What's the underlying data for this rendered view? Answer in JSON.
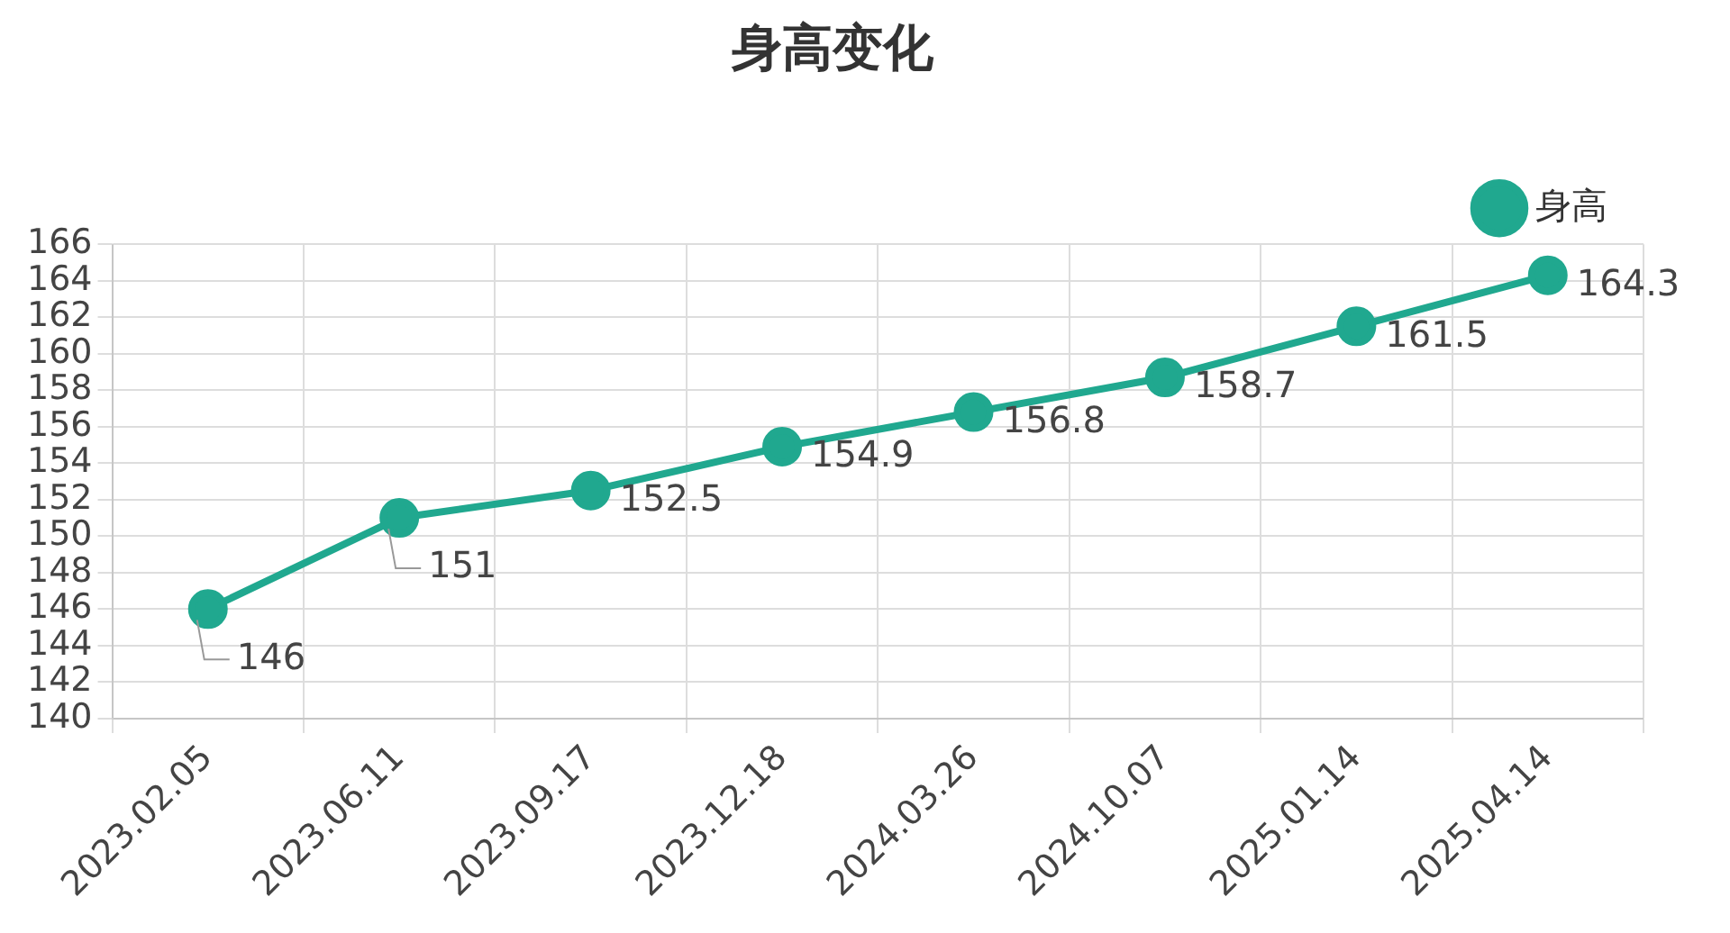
{
  "chart_data": {
    "type": "line",
    "title": "身高变化",
    "categories": [
      "2023.02.05",
      "2023.06.11",
      "2023.09.17",
      "2023.12.18",
      "2024.03.26",
      "2024.10.07",
      "2025.01.14",
      "2025.04.14"
    ],
    "series": [
      {
        "name": "身高",
        "color": "#20a88f",
        "values": [
          146,
          151,
          152.5,
          154.9,
          156.8,
          158.7,
          161.5,
          164.3
        ]
      }
    ],
    "ylim": [
      140,
      166
    ],
    "yticks": [
      140,
      142,
      144,
      146,
      148,
      150,
      152,
      154,
      156,
      158,
      160,
      162,
      164,
      166
    ],
    "grid": true,
    "legend": "top right",
    "marker": "circle",
    "data_labels": true
  }
}
